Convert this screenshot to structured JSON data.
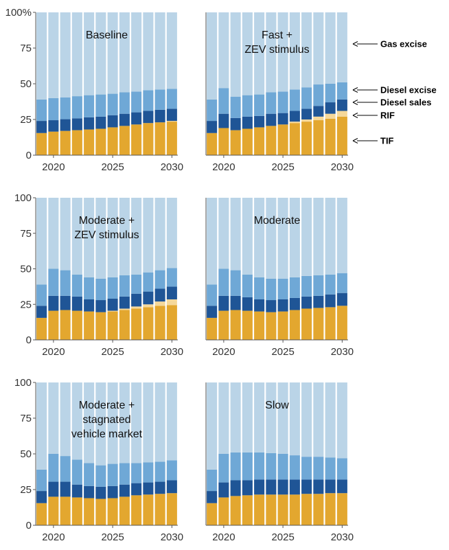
{
  "colors": {
    "TIF": "#e3a72f",
    "RIF": "#f5d89a",
    "Diesel sales": "#1f5596",
    "Diesel excise": "#6fa8d6",
    "Gas excise": "#bad4e7"
  },
  "chart_data": {
    "type": "bar",
    "stacked": true,
    "layout": "facet-grid-3x2",
    "x": [
      2019,
      2020,
      2021,
      2022,
      2023,
      2024,
      2025,
      2026,
      2027,
      2028,
      2029,
      2030
    ],
    "ylim": [
      0,
      100
    ],
    "yticks": [
      0,
      25,
      50,
      75,
      100
    ],
    "ytick_labels_first": [
      "0",
      "25",
      "50",
      "75",
      "100%"
    ],
    "ytick_labels_other": [
      "0",
      "25",
      "50",
      "75",
      "100"
    ],
    "xticks": [
      2020,
      2025,
      2030
    ],
    "xtick_labels": [
      "2020",
      "2025",
      "2030"
    ],
    "stack_order": [
      "TIF",
      "RIF",
      "Diesel sales",
      "Diesel excise",
      "Gas excise"
    ],
    "legend": [
      {
        "name": "Gas excise"
      },
      {
        "name": "Diesel excise"
      },
      {
        "name": "Diesel sales"
      },
      {
        "name": "RIF"
      },
      {
        "name": "TIF"
      }
    ],
    "panels": [
      {
        "label_lines": [
          "Baseline"
        ],
        "series": [
          {
            "name": "TIF",
            "values": [
              15.5,
              16.5,
              17,
              17.5,
              18,
              18.5,
              19.5,
              20.5,
              21.5,
              22.5,
              23,
              23.5
            ]
          },
          {
            "name": "RIF",
            "values": [
              0,
              0,
              0,
              0,
              0,
              0,
              0,
              0,
              0,
              0,
              0,
              0.5
            ]
          },
          {
            "name": "Diesel sales",
            "values": [
              8.5,
              8,
              8.2,
              8.3,
              8.5,
              8.5,
              8.5,
              8.5,
              8.5,
              8.5,
              8.8,
              8.5
            ]
          },
          {
            "name": "Diesel excise",
            "values": [
              15,
              15.5,
              15.3,
              15.5,
              15.5,
              15.5,
              15,
              15,
              14.5,
              14.5,
              14.2,
              14
            ]
          },
          {
            "name": "Gas excise",
            "values": [
              61,
              60,
              59.5,
              58.7,
              58,
              57.5,
              57,
              56,
              55.5,
              54.5,
              54,
              53.5
            ]
          }
        ]
      },
      {
        "label_lines": [
          "Fast +",
          "ZEV stimulus"
        ],
        "series": [
          {
            "name": "TIF",
            "values": [
              15.5,
              19,
              17.5,
              18.5,
              19.5,
              20.5,
              21.5,
              22.5,
              23.5,
              24.5,
              25.5,
              27
            ]
          },
          {
            "name": "RIF",
            "values": [
              0,
              0,
              0,
              0,
              0,
              0,
              0,
              1,
              1.5,
              2.5,
              3.5,
              4
            ]
          },
          {
            "name": "Diesel sales",
            "values": [
              8.5,
              10,
              8.5,
              8.5,
              8,
              8.5,
              8,
              7.5,
              7.5,
              7.5,
              8,
              8
            ]
          },
          {
            "name": "Diesel excise",
            "values": [
              15,
              18,
              15,
              15,
              15,
              15,
              15,
              15,
              15,
              15,
              13,
              12
            ]
          },
          {
            "name": "Gas excise",
            "values": [
              61,
              53,
              59,
              58,
              57.5,
              56,
              55.5,
              54,
              52.5,
              50.5,
              50,
              49
            ]
          }
        ]
      },
      {
        "label_lines": [
          "Moderate +",
          "ZEV stimulus"
        ],
        "series": [
          {
            "name": "TIF",
            "values": [
              15.5,
              20.5,
              21,
              20.5,
              20,
              19.5,
              20,
              21,
              22,
              23,
              24,
              24.5
            ]
          },
          {
            "name": "RIF",
            "values": [
              0,
              0,
              0,
              0,
              0,
              0,
              0.5,
              1,
              1.5,
              2,
              3,
              4
            ]
          },
          {
            "name": "Diesel sales",
            "values": [
              8.5,
              10.5,
              10,
              10,
              8.5,
              8.5,
              8.5,
              8.5,
              9,
              9,
              9,
              9
            ]
          },
          {
            "name": "Diesel excise",
            "values": [
              15,
              19,
              18,
              15.5,
              15.5,
              15,
              15,
              15,
              13.5,
              13.5,
              13,
              13
            ]
          },
          {
            "name": "Gas excise",
            "values": [
              61,
              50,
              51,
              54,
              56,
              57,
              56,
              54.5,
              54,
              52.5,
              51,
              49.5
            ]
          }
        ]
      },
      {
        "label_lines": [
          "Moderate"
        ],
        "series": [
          {
            "name": "TIF",
            "values": [
              15.5,
              20.5,
              21,
              20.5,
              20,
              19.5,
              20,
              21,
              22,
              22.5,
              23,
              24
            ]
          },
          {
            "name": "RIF",
            "values": [
              0,
              0,
              0,
              0,
              0,
              0,
              0,
              0,
              0,
              0,
              0,
              0
            ]
          },
          {
            "name": "Diesel sales",
            "values": [
              8.5,
              10.5,
              10,
              9.5,
              8.5,
              8.5,
              8.5,
              8.5,
              8.5,
              8.5,
              9,
              9
            ]
          },
          {
            "name": "Diesel excise",
            "values": [
              15,
              19,
              18,
              16,
              15.5,
              15,
              14.5,
              14.5,
              14.5,
              14.5,
              14,
              14
            ]
          },
          {
            "name": "Gas excise",
            "values": [
              61,
              50,
              51,
              54,
              56,
              57,
              57,
              56,
              55,
              54.5,
              54,
              53
            ]
          }
        ]
      },
      {
        "label_lines": [
          "Moderate +",
          "stagnated",
          "vehicle market"
        ],
        "series": [
          {
            "name": "TIF",
            "values": [
              15.5,
              20,
              20,
              19.5,
              19,
              18.5,
              19,
              20,
              21,
              21.5,
              22,
              22.5
            ]
          },
          {
            "name": "RIF",
            "values": [
              0,
              0,
              0,
              0,
              0,
              0,
              0,
              0,
              0,
              0,
              0,
              0
            ]
          },
          {
            "name": "Diesel sales",
            "values": [
              8.5,
              10.5,
              10.5,
              9,
              8.5,
              8.5,
              8.5,
              8.5,
              8.5,
              8.5,
              8.5,
              9
            ]
          },
          {
            "name": "Diesel excise",
            "values": [
              15,
              19.5,
              18,
              17.5,
              16,
              15,
              15.5,
              15,
              14,
              14,
              14,
              14
            ]
          },
          {
            "name": "Gas excise",
            "values": [
              61,
              50,
              51.5,
              54,
              56.5,
              58,
              57,
              56.5,
              56.5,
              56,
              55.5,
              54.5
            ]
          }
        ]
      },
      {
        "label_lines": [
          "Slow"
        ],
        "series": [
          {
            "name": "TIF",
            "values": [
              15.5,
              19.5,
              20.5,
              21,
              21.5,
              21.5,
              21.5,
              21.5,
              22,
              22,
              22.5,
              22.5
            ]
          },
          {
            "name": "RIF",
            "values": [
              0,
              0,
              0,
              0,
              0,
              0,
              0,
              0,
              0,
              0,
              0,
              0
            ]
          },
          {
            "name": "Diesel sales",
            "values": [
              8.5,
              10.5,
              11,
              10.5,
              10.5,
              10.5,
              10.5,
              10.5,
              10,
              10,
              9.5,
              9.5
            ]
          },
          {
            "name": "Diesel excise",
            "values": [
              15,
              20,
              19.5,
              19.5,
              19,
              18.5,
              18,
              17,
              16,
              16,
              15.5,
              15
            ]
          },
          {
            "name": "Gas excise",
            "values": [
              61,
              50,
              49,
              49,
              49,
              49.5,
              50,
              51,
              52,
              52,
              52.5,
              53
            ]
          }
        ]
      }
    ]
  }
}
